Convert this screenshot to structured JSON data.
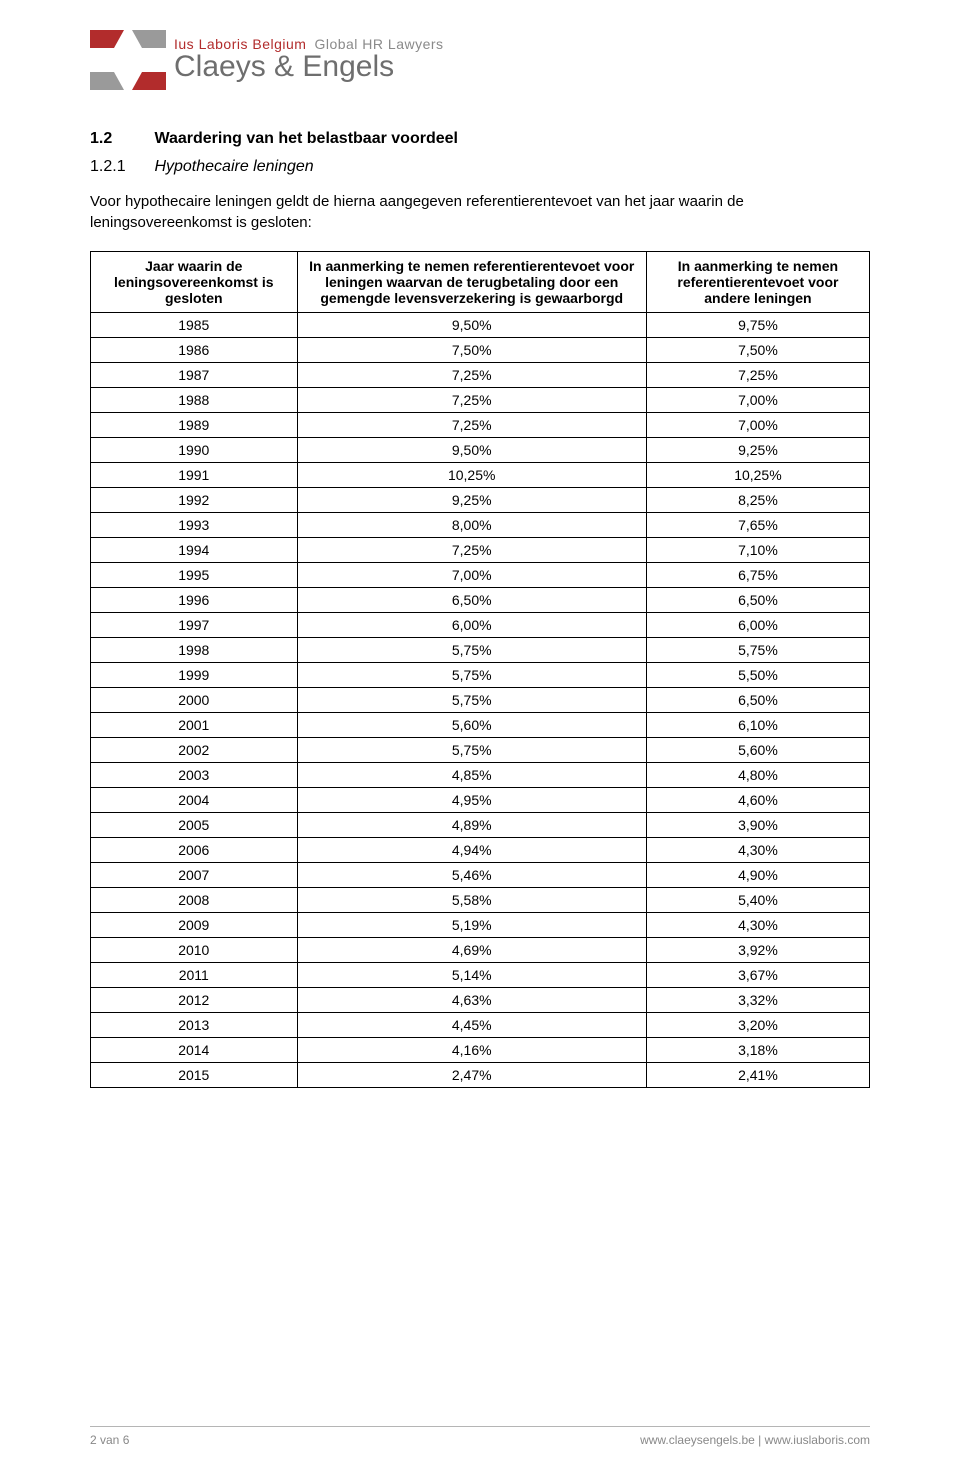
{
  "brand": {
    "line1_red": "Ius Laboris Belgium",
    "line1_grey": "Global HR Lawyers",
    "main": "Claeys & Engels",
    "logo_color_red": "#b22c2c",
    "logo_color_grey": "#9a9a9a"
  },
  "heading": {
    "num": "1.2",
    "text": "Waardering van het belastbaar voordeel"
  },
  "subheading": {
    "num": "1.2.1",
    "text": "Hypothecaire leningen"
  },
  "intro": "Voor hypothecaire leningen geldt de hierna aangegeven referentierentevoet van het jaar waarin de leningsovereenkomst is gesloten:",
  "table": {
    "columns": [
      "Jaar waarin de leningsovereenkomst is gesloten",
      "In aanmerking te nemen referentierentevoet voor leningen waarvan de terugbetaling door een gemengde levensverzekering is gewaarborgd",
      "In aanmerking te nemen referentierentevoet voor andere leningen"
    ],
    "rows": [
      [
        "1985",
        "9,50%",
        "9,75%"
      ],
      [
        "1986",
        "7,50%",
        "7,50%"
      ],
      [
        "1987",
        "7,25%",
        "7,25%"
      ],
      [
        "1988",
        "7,25%",
        "7,00%"
      ],
      [
        "1989",
        "7,25%",
        "7,00%"
      ],
      [
        "1990",
        "9,50%",
        "9,25%"
      ],
      [
        "1991",
        "10,25%",
        "10,25%"
      ],
      [
        "1992",
        "9,25%",
        "8,25%"
      ],
      [
        "1993",
        "8,00%",
        "7,65%"
      ],
      [
        "1994",
        "7,25%",
        "7,10%"
      ],
      [
        "1995",
        "7,00%",
        "6,75%"
      ],
      [
        "1996",
        "6,50%",
        "6,50%"
      ],
      [
        "1997",
        "6,00%",
        "6,00%"
      ],
      [
        "1998",
        "5,75%",
        "5,75%"
      ],
      [
        "1999",
        "5,75%",
        "5,50%"
      ],
      [
        "2000",
        "5,75%",
        "6,50%"
      ],
      [
        "2001",
        "5,60%",
        "6,10%"
      ],
      [
        "2002",
        "5,75%",
        "5,60%"
      ],
      [
        "2003",
        "4,85%",
        "4,80%"
      ],
      [
        "2004",
        "4,95%",
        "4,60%"
      ],
      [
        "2005",
        "4,89%",
        "3,90%"
      ],
      [
        "2006",
        "4,94%",
        "4,30%"
      ],
      [
        "2007",
        "5,46%",
        "4,90%"
      ],
      [
        "2008",
        "5,58%",
        "5,40%"
      ],
      [
        "2009",
        "5,19%",
        "4,30%"
      ],
      [
        "2010",
        "4,69%",
        "3,92%"
      ],
      [
        "2011",
        "5,14%",
        "3,67%"
      ],
      [
        "2012",
        "4,63%",
        "3,32%"
      ],
      [
        "2013",
        "4,45%",
        "3,20%"
      ],
      [
        "2014",
        "4,16%",
        "3,18%"
      ],
      [
        "2015",
        "2,47%",
        "2,41%"
      ]
    ]
  },
  "footer": {
    "page": "2 van 6",
    "link1": "www.claeysengels.be",
    "sep": " | ",
    "link2": "www.iuslaboris.com"
  }
}
